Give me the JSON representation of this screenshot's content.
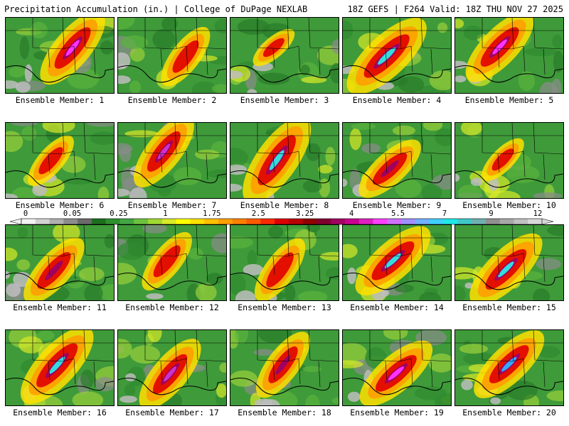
{
  "header": {
    "title": "Precipitation Accumulation (in.) | College of DuPage NEXLAB",
    "run_info": "18Z GEFS | F264 Valid: 18Z THU NOV 27 2025"
  },
  "members": [
    {
      "label": "Ensemble Member: 1",
      "intensity": 0.8,
      "accent": "#ff33ff"
    },
    {
      "label": "Ensemble Member: 2",
      "intensity": 0.55,
      "accent": "#cc0000"
    },
    {
      "label": "Ensemble Member: 3",
      "intensity": 0.3,
      "accent": "#ffe000"
    },
    {
      "label": "Ensemble Member: 4",
      "intensity": 0.95,
      "accent": "#33dddd"
    },
    {
      "label": "Ensemble Member: 5",
      "intensity": 0.8,
      "accent": "#ff33ff"
    },
    {
      "label": "Ensemble Member: 6",
      "intensity": 0.45,
      "accent": "#ff9900"
    },
    {
      "label": "Ensemble Member: 7",
      "intensity": 0.75,
      "accent": "#cc33cc"
    },
    {
      "label": "Ensemble Member: 8",
      "intensity": 0.95,
      "accent": "#33dddd"
    },
    {
      "label": "Ensemble Member: 9",
      "intensity": 0.65,
      "accent": "#aa0033"
    },
    {
      "label": "Ensemble Member: 10",
      "intensity": 0.35,
      "accent": "#ff9900"
    },
    {
      "label": "Ensemble Member: 11",
      "intensity": 0.7,
      "accent": "#cc33cc"
    },
    {
      "label": "Ensemble Member: 12",
      "intensity": 0.55,
      "accent": "#aa0033"
    },
    {
      "label": "Ensemble Member: 13",
      "intensity": 0.6,
      "accent": "#cc33cc"
    },
    {
      "label": "Ensemble Member: 14",
      "intensity": 0.85,
      "accent": "#33dddd"
    },
    {
      "label": "Ensemble Member: 15",
      "intensity": 0.85,
      "accent": "#33dddd"
    },
    {
      "label": "Ensemble Member: 16",
      "intensity": 0.9,
      "accent": "#33dddd"
    },
    {
      "label": "Ensemble Member: 17",
      "intensity": 0.75,
      "accent": "#cc33cc"
    },
    {
      "label": "Ensemble Member: 18",
      "intensity": 0.65,
      "accent": "#aa0033"
    },
    {
      "label": "Ensemble Member: 19",
      "intensity": 0.8,
      "accent": "#ff33ff"
    },
    {
      "label": "Ensemble Member: 20",
      "intensity": 0.8,
      "accent": "#33aaff"
    }
  ],
  "colorbar": {
    "labels": [
      "0",
      "0.05",
      "0.25",
      "1",
      "1.75",
      "2.5",
      "3.25",
      "4",
      "5.5",
      "7",
      "9",
      "12"
    ],
    "colors": [
      "#f2f2f2",
      "#d2d2d2",
      "#b0b0b0",
      "#8c8c8c",
      "#6a6a6a",
      "#1d6e1d",
      "#2f8f2f",
      "#42a642",
      "#6cc23e",
      "#a0d832",
      "#d8ea28",
      "#ffff00",
      "#ffe000",
      "#ffbf00",
      "#ff9f00",
      "#ff7f00",
      "#ff5a00",
      "#ff2a00",
      "#e00000",
      "#b80000",
      "#900000",
      "#800030",
      "#a00060",
      "#c80090",
      "#e020c0",
      "#ff40ff",
      "#d070ff",
      "#a090ff",
      "#70b0ff",
      "#40d0ff",
      "#20e8e8",
      "#40c8c8",
      "#70b0b0",
      "#909090",
      "#a8a8a8",
      "#c0c0c0",
      "#d8d8d8"
    ]
  }
}
